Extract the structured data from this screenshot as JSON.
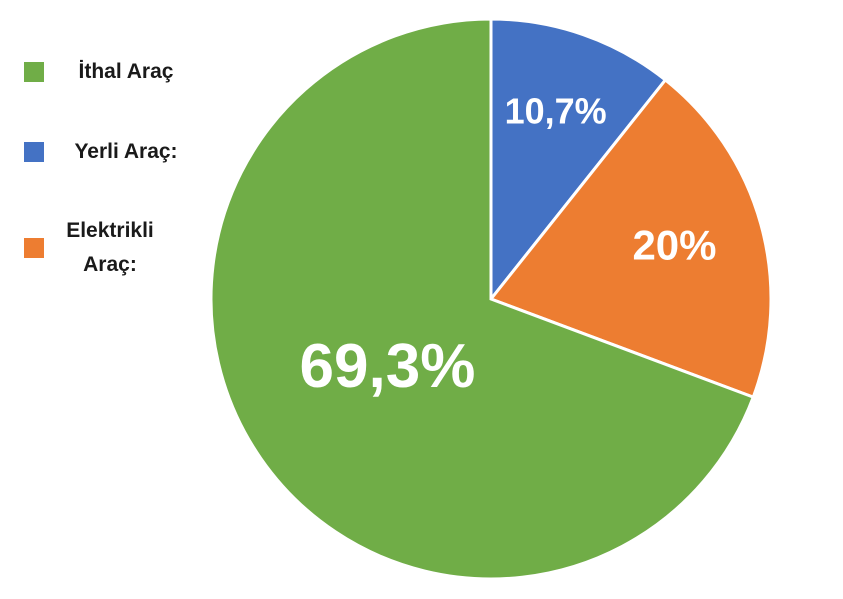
{
  "chart_data": {
    "type": "pie",
    "categories": [
      "İthal Araç",
      "Yerli Araç:",
      "Elektrikli Araç:"
    ],
    "values": [
      69.3,
      10.7,
      20
    ],
    "value_labels": [
      "69,3%",
      "10,7%",
      "20%"
    ],
    "colors": [
      "#70ad47",
      "#4472c4",
      "#ed7d31"
    ],
    "legend": "left"
  }
}
